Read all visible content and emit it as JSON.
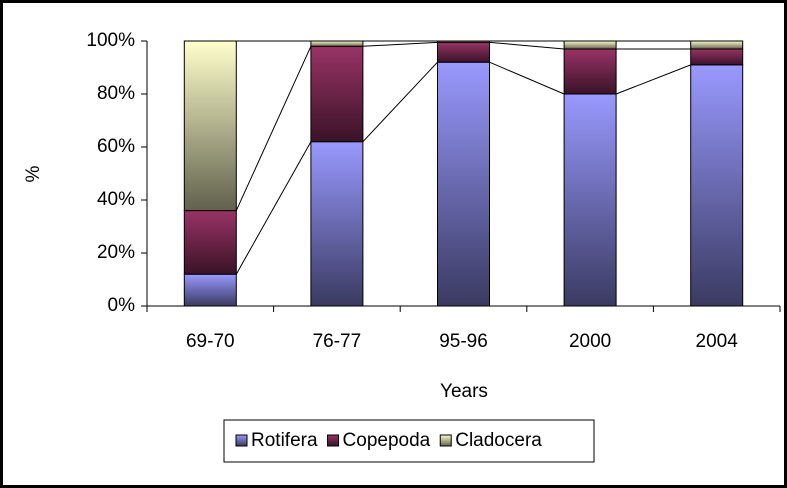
{
  "chart_data": {
    "type": "stacked_bar",
    "x_label": "Years",
    "y_label": "%",
    "categories": [
      "69-70",
      "76-77",
      "95-96",
      "2000",
      "2004"
    ],
    "series": [
      {
        "name": "Rotifera",
        "color": "#9999ff",
        "values": [
          12,
          62,
          92,
          80,
          91
        ]
      },
      {
        "name": "Copepoda",
        "color": "#993366",
        "values": [
          24,
          36,
          7.5,
          17,
          6
        ]
      },
      {
        "name": "Cladocera",
        "color": "#ffffcc",
        "values": [
          64,
          2,
          0.5,
          3,
          3
        ]
      }
    ],
    "ylim": [
      0,
      100
    ],
    "yticks": [
      {
        "value": 0,
        "label": "0%"
      },
      {
        "value": 20,
        "label": "20%"
      },
      {
        "value": 40,
        "label": "40%"
      },
      {
        "value": 60,
        "label": "60%"
      },
      {
        "value": 80,
        "label": "80%"
      },
      {
        "value": 100,
        "label": "100%"
      }
    ],
    "legend": "bottom"
  }
}
